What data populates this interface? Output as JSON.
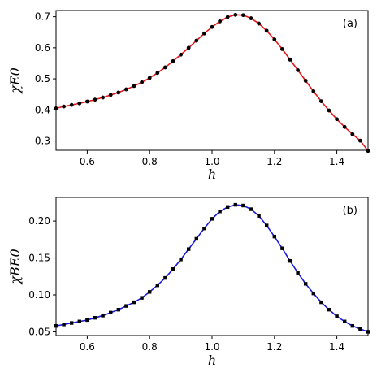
{
  "chart_data": [
    {
      "type": "line",
      "panel_label": "(a)",
      "xlabel": "h",
      "ylabel": "χE0",
      "xlim": [
        0.5,
        1.5
      ],
      "ylim": [
        0.27,
        0.72
      ],
      "xticks": [
        0.6,
        0.8,
        1.0,
        1.2,
        1.4
      ],
      "yticks": [
        0.3,
        0.4,
        0.5,
        0.6,
        0.7
      ],
      "grid": false,
      "line_color": "#e8161b",
      "marker_color": "#000000",
      "marker": "circle",
      "x": [
        0.5,
        0.525,
        0.55,
        0.575,
        0.6,
        0.625,
        0.65,
        0.675,
        0.7,
        0.725,
        0.75,
        0.775,
        0.8,
        0.825,
        0.85,
        0.875,
        0.9,
        0.925,
        0.95,
        0.975,
        1.0,
        1.025,
        1.05,
        1.075,
        1.1,
        1.125,
        1.15,
        1.175,
        1.2,
        1.225,
        1.25,
        1.275,
        1.3,
        1.325,
        1.35,
        1.375,
        1.4,
        1.425,
        1.45,
        1.475,
        1.5
      ],
      "y": [
        0.405,
        0.411,
        0.416,
        0.421,
        0.427,
        0.433,
        0.44,
        0.448,
        0.456,
        0.466,
        0.477,
        0.489,
        0.503,
        0.519,
        0.537,
        0.557,
        0.578,
        0.6,
        0.623,
        0.646,
        0.667,
        0.685,
        0.699,
        0.706,
        0.705,
        0.695,
        0.678,
        0.655,
        0.627,
        0.596,
        0.562,
        0.528,
        0.494,
        0.46,
        0.428,
        0.398,
        0.37,
        0.345,
        0.322,
        0.301,
        0.268
      ]
    },
    {
      "type": "line",
      "panel_label": "(b)",
      "xlabel": "h",
      "ylabel": "χBE0",
      "xlim": [
        0.5,
        1.5
      ],
      "ylim": [
        0.045,
        0.232
      ],
      "xticks": [
        0.6,
        0.8,
        1.0,
        1.2,
        1.4
      ],
      "yticks": [
        0.05,
        0.1,
        0.15,
        0.2
      ],
      "ytick_labels": [
        "0.05",
        "0.10",
        "0.15",
        "0.20"
      ],
      "grid": false,
      "line_color": "#1a1adb",
      "marker_color": "#000000",
      "marker": "square",
      "x": [
        0.5,
        0.525,
        0.55,
        0.575,
        0.6,
        0.625,
        0.65,
        0.675,
        0.7,
        0.725,
        0.75,
        0.775,
        0.8,
        0.825,
        0.85,
        0.875,
        0.9,
        0.925,
        0.95,
        0.975,
        1.0,
        1.025,
        1.05,
        1.075,
        1.1,
        1.125,
        1.15,
        1.175,
        1.2,
        1.225,
        1.25,
        1.275,
        1.3,
        1.325,
        1.35,
        1.375,
        1.4,
        1.425,
        1.45,
        1.475,
        1.5
      ],
      "y": [
        0.058,
        0.06,
        0.062,
        0.064,
        0.066,
        0.069,
        0.072,
        0.076,
        0.08,
        0.085,
        0.09,
        0.096,
        0.104,
        0.113,
        0.123,
        0.135,
        0.148,
        0.162,
        0.176,
        0.19,
        0.203,
        0.213,
        0.219,
        0.222,
        0.221,
        0.216,
        0.207,
        0.194,
        0.179,
        0.163,
        0.146,
        0.13,
        0.115,
        0.102,
        0.09,
        0.08,
        0.071,
        0.064,
        0.058,
        0.054,
        0.05
      ]
    }
  ]
}
